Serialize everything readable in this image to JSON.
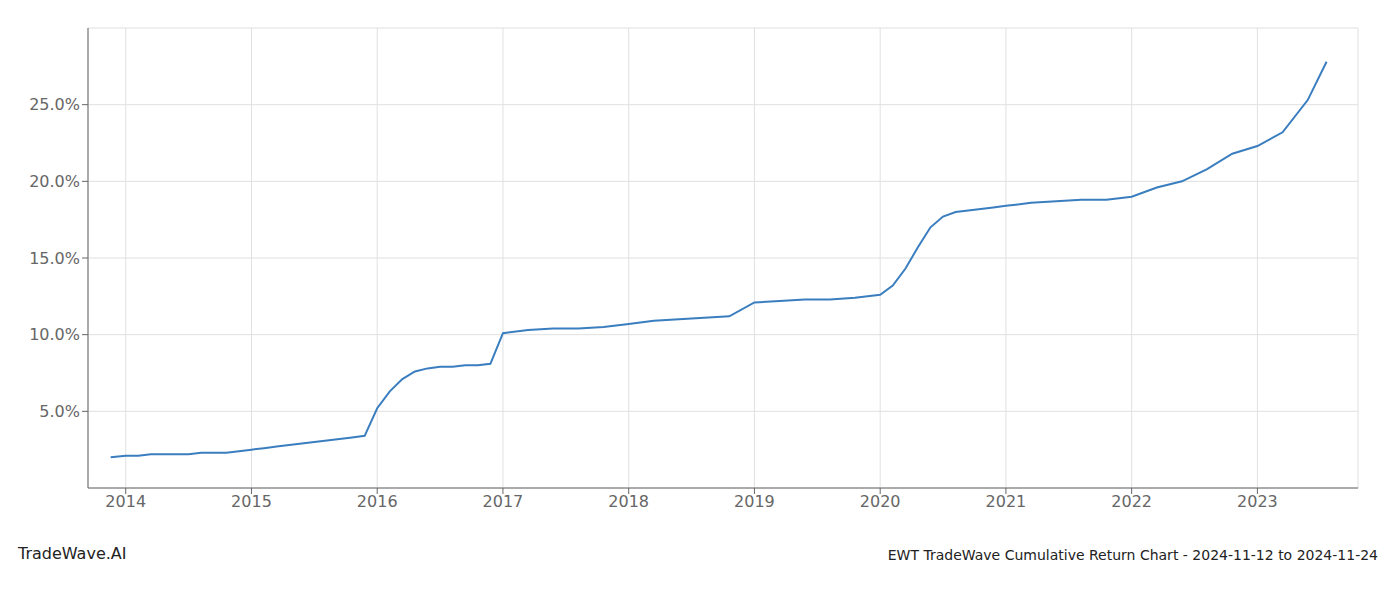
{
  "chart_data": {
    "type": "line",
    "title": "EWT TradeWave Cumulative Return Chart - 2024-11-12 to 2024-11-24",
    "annotations": [
      "TradeWave.AI"
    ],
    "x": [
      2013.88,
      2014.0,
      2014.1,
      2014.2,
      2014.3,
      2014.4,
      2014.5,
      2014.6,
      2014.7,
      2014.8,
      2014.9,
      2015.0,
      2015.1,
      2015.2,
      2015.3,
      2015.4,
      2015.5,
      2015.6,
      2015.7,
      2015.8,
      2015.9,
      2016.0,
      2016.1,
      2016.2,
      2016.3,
      2016.4,
      2016.5,
      2016.6,
      2016.7,
      2016.8,
      2016.9,
      2017.0,
      2017.2,
      2017.4,
      2017.6,
      2017.8,
      2018.0,
      2018.2,
      2018.4,
      2018.6,
      2018.8,
      2019.0,
      2019.2,
      2019.4,
      2019.6,
      2019.8,
      2020.0,
      2020.1,
      2020.2,
      2020.3,
      2020.4,
      2020.5,
      2020.6,
      2020.7,
      2020.8,
      2020.9,
      2021.0,
      2021.2,
      2021.4,
      2021.6,
      2021.8,
      2022.0,
      2022.2,
      2022.4,
      2022.6,
      2022.8,
      2023.0,
      2023.2,
      2023.4,
      2023.55
    ],
    "values": [
      0.02,
      0.021,
      0.021,
      0.022,
      0.022,
      0.022,
      0.022,
      0.023,
      0.023,
      0.023,
      0.024,
      0.025,
      0.026,
      0.027,
      0.028,
      0.029,
      0.03,
      0.031,
      0.032,
      0.033,
      0.034,
      0.052,
      0.063,
      0.071,
      0.076,
      0.078,
      0.079,
      0.079,
      0.08,
      0.08,
      0.081,
      0.101,
      0.103,
      0.104,
      0.104,
      0.105,
      0.107,
      0.109,
      0.11,
      0.111,
      0.112,
      0.121,
      0.122,
      0.123,
      0.123,
      0.124,
      0.126,
      0.132,
      0.143,
      0.157,
      0.17,
      0.177,
      0.18,
      0.181,
      0.182,
      0.183,
      0.184,
      0.186,
      0.187,
      0.188,
      0.188,
      0.19,
      0.196,
      0.2,
      0.208,
      0.218,
      0.223,
      0.232,
      0.253,
      0.278
    ],
    "color": "#3a7ebf",
    "xlim": [
      2013.7,
      2023.8
    ],
    "ylim": [
      0.0,
      0.3
    ],
    "xticks": [
      2014,
      2015,
      2016,
      2017,
      2018,
      2019,
      2020,
      2021,
      2022,
      2023
    ],
    "yticks": [
      {
        "value": 0.05,
        "label": "5.0%"
      },
      {
        "value": 0.1,
        "label": "10.0%"
      },
      {
        "value": 0.15,
        "label": "15.0%"
      },
      {
        "value": 0.2,
        "label": "20.0%"
      },
      {
        "value": 0.25,
        "label": "25.0%"
      }
    ],
    "grid": true
  }
}
